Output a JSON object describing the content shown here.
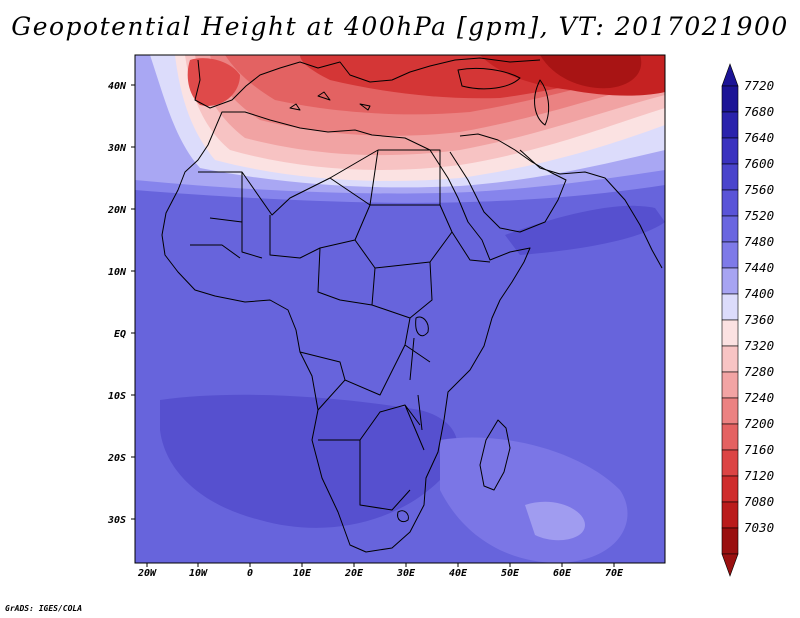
{
  "title": "Geopotential Height at 400hPa [gpm], VT: 2017021900",
  "credit": "GrADS: IGES/COLA",
  "map": {
    "x_ticks": [
      "20W",
      "10W",
      "0",
      "10E",
      "20E",
      "30E",
      "40E",
      "50E",
      "60E",
      "70E"
    ],
    "y_ticks": [
      "40N",
      "30N",
      "20N",
      "10N",
      "EQ",
      "10S",
      "20S",
      "30S"
    ]
  },
  "colorbar": {
    "levels": [
      "7720",
      "7680",
      "7640",
      "7600",
      "7560",
      "7520",
      "7480",
      "7440",
      "7400",
      "7360",
      "7320",
      "7280",
      "7240",
      "7200",
      "7160",
      "7120",
      "7080",
      "7030"
    ],
    "colors": [
      "#1c1496",
      "#2a22ac",
      "#3a32bf",
      "#4a44cc",
      "#5a54d8",
      "#6a66e0",
      "#7e7ae8",
      "#a7a4f2",
      "#dcdcfb",
      "#fce2e2",
      "#f8c4c4",
      "#f2a4a4",
      "#ec8282",
      "#e46262",
      "#dc4444",
      "#cf2c2c",
      "#ba1c1c",
      "#9a1010"
    ]
  }
}
